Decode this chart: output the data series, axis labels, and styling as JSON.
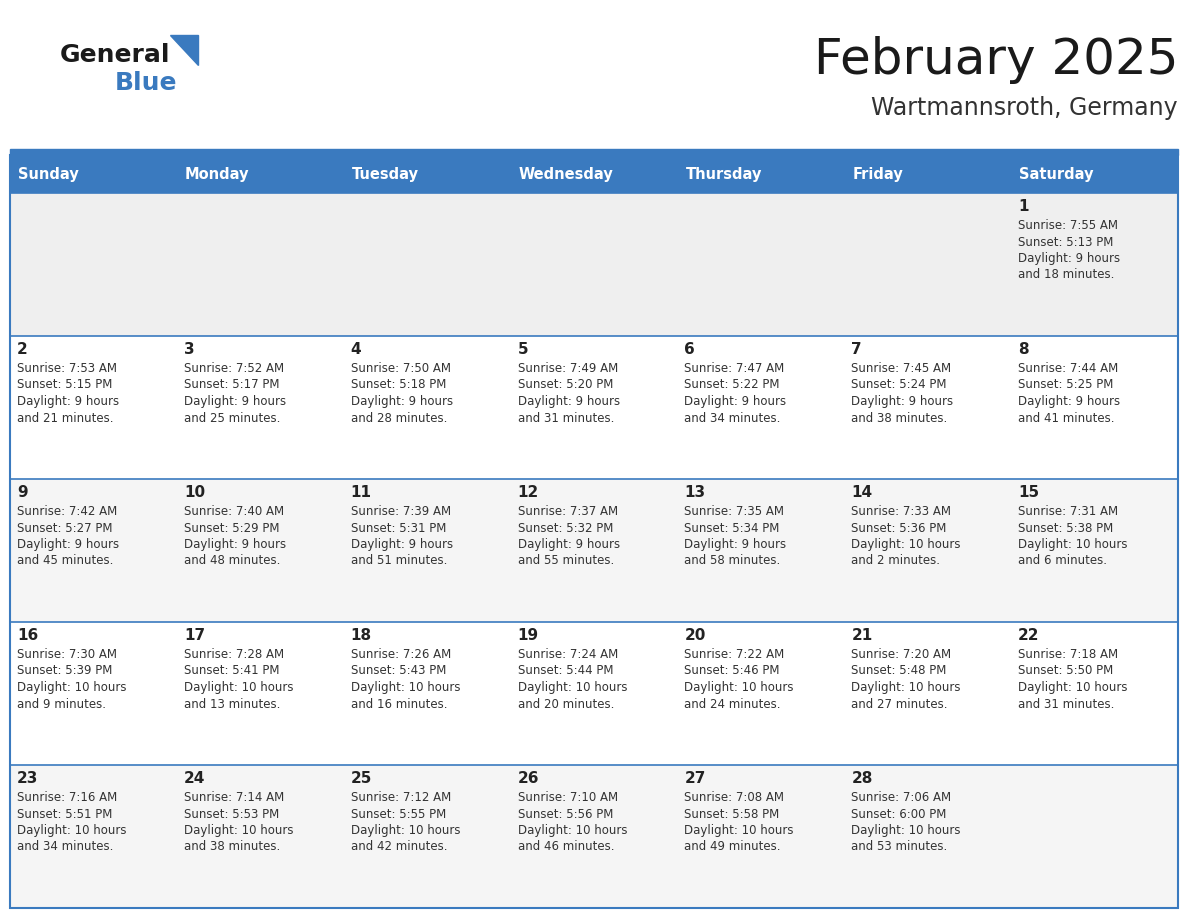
{
  "title": "February 2025",
  "subtitle": "Wartmannsroth, Germany",
  "header_bg": "#3a7abf",
  "header_text": "#ffffff",
  "cell_bg_row0": "#efefef",
  "cell_bg_odd": "#ffffff",
  "cell_bg_even": "#f5f5f5",
  "border_color": "#3a7abf",
  "day_num_color": "#222222",
  "text_color": "#333333",
  "day_names": [
    "Sunday",
    "Monday",
    "Tuesday",
    "Wednesday",
    "Thursday",
    "Friday",
    "Saturday"
  ],
  "title_color": "#1a1a1a",
  "subtitle_color": "#333333",
  "days": [
    {
      "day": 1,
      "col": 6,
      "row": 0,
      "sunrise": "7:55 AM",
      "sunset": "5:13 PM",
      "daylight": "9 hours and 18 minutes"
    },
    {
      "day": 2,
      "col": 0,
      "row": 1,
      "sunrise": "7:53 AM",
      "sunset": "5:15 PM",
      "daylight": "9 hours and 21 minutes"
    },
    {
      "day": 3,
      "col": 1,
      "row": 1,
      "sunrise": "7:52 AM",
      "sunset": "5:17 PM",
      "daylight": "9 hours and 25 minutes"
    },
    {
      "day": 4,
      "col": 2,
      "row": 1,
      "sunrise": "7:50 AM",
      "sunset": "5:18 PM",
      "daylight": "9 hours and 28 minutes"
    },
    {
      "day": 5,
      "col": 3,
      "row": 1,
      "sunrise": "7:49 AM",
      "sunset": "5:20 PM",
      "daylight": "9 hours and 31 minutes"
    },
    {
      "day": 6,
      "col": 4,
      "row": 1,
      "sunrise": "7:47 AM",
      "sunset": "5:22 PM",
      "daylight": "9 hours and 34 minutes"
    },
    {
      "day": 7,
      "col": 5,
      "row": 1,
      "sunrise": "7:45 AM",
      "sunset": "5:24 PM",
      "daylight": "9 hours and 38 minutes"
    },
    {
      "day": 8,
      "col": 6,
      "row": 1,
      "sunrise": "7:44 AM",
      "sunset": "5:25 PM",
      "daylight": "9 hours and 41 minutes"
    },
    {
      "day": 9,
      "col": 0,
      "row": 2,
      "sunrise": "7:42 AM",
      "sunset": "5:27 PM",
      "daylight": "9 hours and 45 minutes"
    },
    {
      "day": 10,
      "col": 1,
      "row": 2,
      "sunrise": "7:40 AM",
      "sunset": "5:29 PM",
      "daylight": "9 hours and 48 minutes"
    },
    {
      "day": 11,
      "col": 2,
      "row": 2,
      "sunrise": "7:39 AM",
      "sunset": "5:31 PM",
      "daylight": "9 hours and 51 minutes"
    },
    {
      "day": 12,
      "col": 3,
      "row": 2,
      "sunrise": "7:37 AM",
      "sunset": "5:32 PM",
      "daylight": "9 hours and 55 minutes"
    },
    {
      "day": 13,
      "col": 4,
      "row": 2,
      "sunrise": "7:35 AM",
      "sunset": "5:34 PM",
      "daylight": "9 hours and 58 minutes"
    },
    {
      "day": 14,
      "col": 5,
      "row": 2,
      "sunrise": "7:33 AM",
      "sunset": "5:36 PM",
      "daylight": "10 hours and 2 minutes"
    },
    {
      "day": 15,
      "col": 6,
      "row": 2,
      "sunrise": "7:31 AM",
      "sunset": "5:38 PM",
      "daylight": "10 hours and 6 minutes"
    },
    {
      "day": 16,
      "col": 0,
      "row": 3,
      "sunrise": "7:30 AM",
      "sunset": "5:39 PM",
      "daylight": "10 hours and 9 minutes"
    },
    {
      "day": 17,
      "col": 1,
      "row": 3,
      "sunrise": "7:28 AM",
      "sunset": "5:41 PM",
      "daylight": "10 hours and 13 minutes"
    },
    {
      "day": 18,
      "col": 2,
      "row": 3,
      "sunrise": "7:26 AM",
      "sunset": "5:43 PM",
      "daylight": "10 hours and 16 minutes"
    },
    {
      "day": 19,
      "col": 3,
      "row": 3,
      "sunrise": "7:24 AM",
      "sunset": "5:44 PM",
      "daylight": "10 hours and 20 minutes"
    },
    {
      "day": 20,
      "col": 4,
      "row": 3,
      "sunrise": "7:22 AM",
      "sunset": "5:46 PM",
      "daylight": "10 hours and 24 minutes"
    },
    {
      "day": 21,
      "col": 5,
      "row": 3,
      "sunrise": "7:20 AM",
      "sunset": "5:48 PM",
      "daylight": "10 hours and 27 minutes"
    },
    {
      "day": 22,
      "col": 6,
      "row": 3,
      "sunrise": "7:18 AM",
      "sunset": "5:50 PM",
      "daylight": "10 hours and 31 minutes"
    },
    {
      "day": 23,
      "col": 0,
      "row": 4,
      "sunrise": "7:16 AM",
      "sunset": "5:51 PM",
      "daylight": "10 hours and 34 minutes"
    },
    {
      "day": 24,
      "col": 1,
      "row": 4,
      "sunrise": "7:14 AM",
      "sunset": "5:53 PM",
      "daylight": "10 hours and 38 minutes"
    },
    {
      "day": 25,
      "col": 2,
      "row": 4,
      "sunrise": "7:12 AM",
      "sunset": "5:55 PM",
      "daylight": "10 hours and 42 minutes"
    },
    {
      "day": 26,
      "col": 3,
      "row": 4,
      "sunrise": "7:10 AM",
      "sunset": "5:56 PM",
      "daylight": "10 hours and 46 minutes"
    },
    {
      "day": 27,
      "col": 4,
      "row": 4,
      "sunrise": "7:08 AM",
      "sunset": "5:58 PM",
      "daylight": "10 hours and 49 minutes"
    },
    {
      "day": 28,
      "col": 5,
      "row": 4,
      "sunrise": "7:06 AM",
      "sunset": "6:00 PM",
      "daylight": "10 hours and 53 minutes"
    }
  ]
}
